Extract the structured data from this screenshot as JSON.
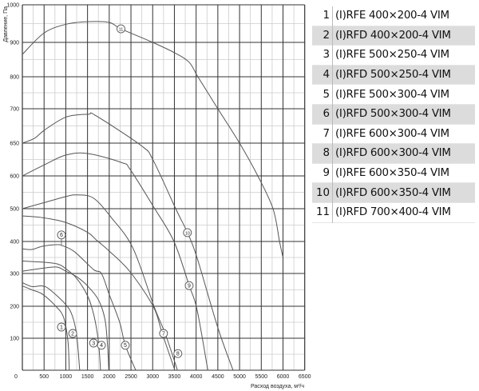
{
  "chart_data": {
    "type": "line",
    "xlabel": "Расход воздуха, м³/ч",
    "ylabel": "Давление, Па",
    "xlim": [
      0,
      6500
    ],
    "ylim": [
      0,
      1000
    ],
    "x_ticks": [
      "0",
      "500",
      "1000",
      "1500",
      "2000",
      "2500",
      "3000",
      "3500",
      "4000",
      "4500",
      "5000",
      "5500",
      "6000",
      "6500"
    ],
    "y_ticks": [
      "0",
      "100",
      "200",
      "300",
      "400",
      "500",
      "600",
      "650",
      "700",
      "800",
      "900",
      "1000"
    ],
    "y_scale_note_values": [
      0,
      100,
      200,
      300,
      400,
      500,
      600,
      650,
      700,
      800,
      900,
      1000
    ],
    "grid": true,
    "series": [
      {
        "label": "1",
        "points": [
          [
            0,
            262
          ],
          [
            220,
            250
          ],
          [
            460,
            237
          ],
          [
            770,
            200
          ],
          [
            950,
            165
          ],
          [
            1050,
            90
          ],
          [
            1080,
            0
          ]
        ]
      },
      {
        "label": "2",
        "points": [
          [
            0,
            272
          ],
          [
            220,
            260
          ],
          [
            460,
            262
          ],
          [
            640,
            250
          ],
          [
            1000,
            205
          ],
          [
            1150,
            170
          ],
          [
            1250,
            110
          ],
          [
            1320,
            0
          ]
        ]
      },
      {
        "label": "3",
        "points": [
          [
            0,
            339
          ],
          [
            500,
            335
          ],
          [
            800,
            330
          ],
          [
            1000,
            315
          ],
          [
            1250,
            285
          ],
          [
            1500,
            232
          ],
          [
            1650,
            170
          ],
          [
            1750,
            90
          ],
          [
            1800,
            0
          ]
        ]
      },
      {
        "label": "4",
        "points": [
          [
            0,
            307
          ],
          [
            500,
            317
          ],
          [
            800,
            320
          ],
          [
            1000,
            307
          ],
          [
            1250,
            290
          ],
          [
            1500,
            262
          ],
          [
            1750,
            220
          ],
          [
            1900,
            160
          ],
          [
            1960,
            80
          ],
          [
            1990,
            0
          ]
        ]
      },
      {
        "label": "5/6",
        "points": [
          [
            0,
            377
          ],
          [
            220,
            375
          ],
          [
            460,
            385
          ],
          [
            770,
            390
          ],
          [
            920,
            387
          ],
          [
            1200,
            368
          ],
          [
            1640,
            312
          ],
          [
            1820,
            300
          ],
          [
            2000,
            236
          ],
          [
            2240,
            150
          ],
          [
            2370,
            78
          ],
          [
            2610,
            0
          ]
        ]
      },
      {
        "label": "7",
        "points": [
          [
            0,
            478
          ],
          [
            500,
            472
          ],
          [
            1000,
            458
          ],
          [
            1500,
            428
          ],
          [
            1700,
            405
          ],
          [
            2000,
            370
          ],
          [
            2480,
            305
          ],
          [
            3010,
            200
          ],
          [
            3220,
            115
          ],
          [
            3510,
            0
          ]
        ]
      },
      {
        "label": "8",
        "points": [
          [
            0,
            500
          ],
          [
            460,
            517
          ],
          [
            1000,
            537
          ],
          [
            1270,
            542
          ],
          [
            1640,
            532
          ],
          [
            2060,
            471
          ],
          [
            2550,
            378
          ],
          [
            3030,
            200
          ],
          [
            3300,
            110
          ],
          [
            3570,
            0
          ]
        ]
      },
      {
        "label": "9",
        "points": [
          [
            0,
            600
          ],
          [
            510,
            617
          ],
          [
            1010,
            632
          ],
          [
            1520,
            634
          ],
          [
            2300,
            620
          ],
          [
            2480,
            610
          ],
          [
            3010,
            508
          ],
          [
            3490,
            400
          ],
          [
            3840,
            263
          ],
          [
            4020,
            190
          ],
          [
            4270,
            0
          ]
        ]
      },
      {
        "label": "10",
        "points": [
          [
            0,
            650
          ],
          [
            280,
            657
          ],
          [
            510,
            669
          ],
          [
            1010,
            688
          ],
          [
            1520,
            692
          ],
          [
            1690,
            690
          ],
          [
            2740,
            646
          ],
          [
            3010,
            624
          ],
          [
            3530,
            500
          ],
          [
            3800,
            427
          ],
          [
            4020,
            350
          ],
          [
            4500,
            133
          ],
          [
            4850,
            0
          ]
        ]
      },
      {
        "label": "11",
        "points": [
          [
            0,
            865
          ],
          [
            500,
            925
          ],
          [
            1000,
            948
          ],
          [
            1500,
            955
          ],
          [
            2000,
            953
          ],
          [
            2270,
            936
          ],
          [
            3000,
            900
          ],
          [
            3500,
            870
          ],
          [
            3840,
            842
          ],
          [
            4040,
            800
          ],
          [
            4500,
            700
          ],
          [
            5000,
            650
          ],
          [
            5420,
            600
          ],
          [
            5770,
            500
          ],
          [
            5920,
            400
          ],
          [
            6000,
            350
          ]
        ]
      }
    ],
    "markers": [
      {
        "label": "1",
        "x": 900,
        "y": 135
      },
      {
        "label": "2",
        "x": 1160,
        "y": 115
      },
      {
        "label": "3",
        "x": 1640,
        "y": 85
      },
      {
        "label": "4",
        "x": 1820,
        "y": 78
      },
      {
        "label": "5",
        "x": 2370,
        "y": 78
      },
      {
        "label": "6",
        "x": 900,
        "y": 420,
        "leader_to": 390
      },
      {
        "label": "7",
        "x": 3250,
        "y": 115
      },
      {
        "label": "8",
        "x": 3580,
        "y": 52
      },
      {
        "label": "9",
        "x": 3840,
        "y": 263
      },
      {
        "label": "10",
        "x": 3800,
        "y": 427
      },
      {
        "label": "11",
        "x": 2270,
        "y": 936
      }
    ]
  },
  "legend": [
    {
      "num": "1",
      "name": "(I)RFE 400×200-4 VIM"
    },
    {
      "num": "2",
      "name": "(I)RFD 400×200-4 VIM"
    },
    {
      "num": "3",
      "name": "(I)RFE 500×250-4 VIM"
    },
    {
      "num": "4",
      "name": "(I)RFD 500×250-4 VIM"
    },
    {
      "num": "5",
      "name": "(I)RFE 500×300-4 VIM"
    },
    {
      "num": "6",
      "name": "(I)RFD 500×300-4 VIM"
    },
    {
      "num": "7",
      "name": "(I)RFE 600×300-4 VIM"
    },
    {
      "num": "8",
      "name": "(I)RFD 600×300-4 VIM"
    },
    {
      "num": "9",
      "name": "(I)RFE 600×350-4 VIM"
    },
    {
      "num": "10",
      "name": "(I)RFD 600×350-4 VIM"
    },
    {
      "num": "11",
      "name": "(I)RFD 700×400-4 VIM"
    }
  ],
  "colors": {
    "curve": "#555555",
    "major_grid": "#333333",
    "minor_grid": "#cccccc",
    "legend_stripe": "#dcdcdc"
  }
}
